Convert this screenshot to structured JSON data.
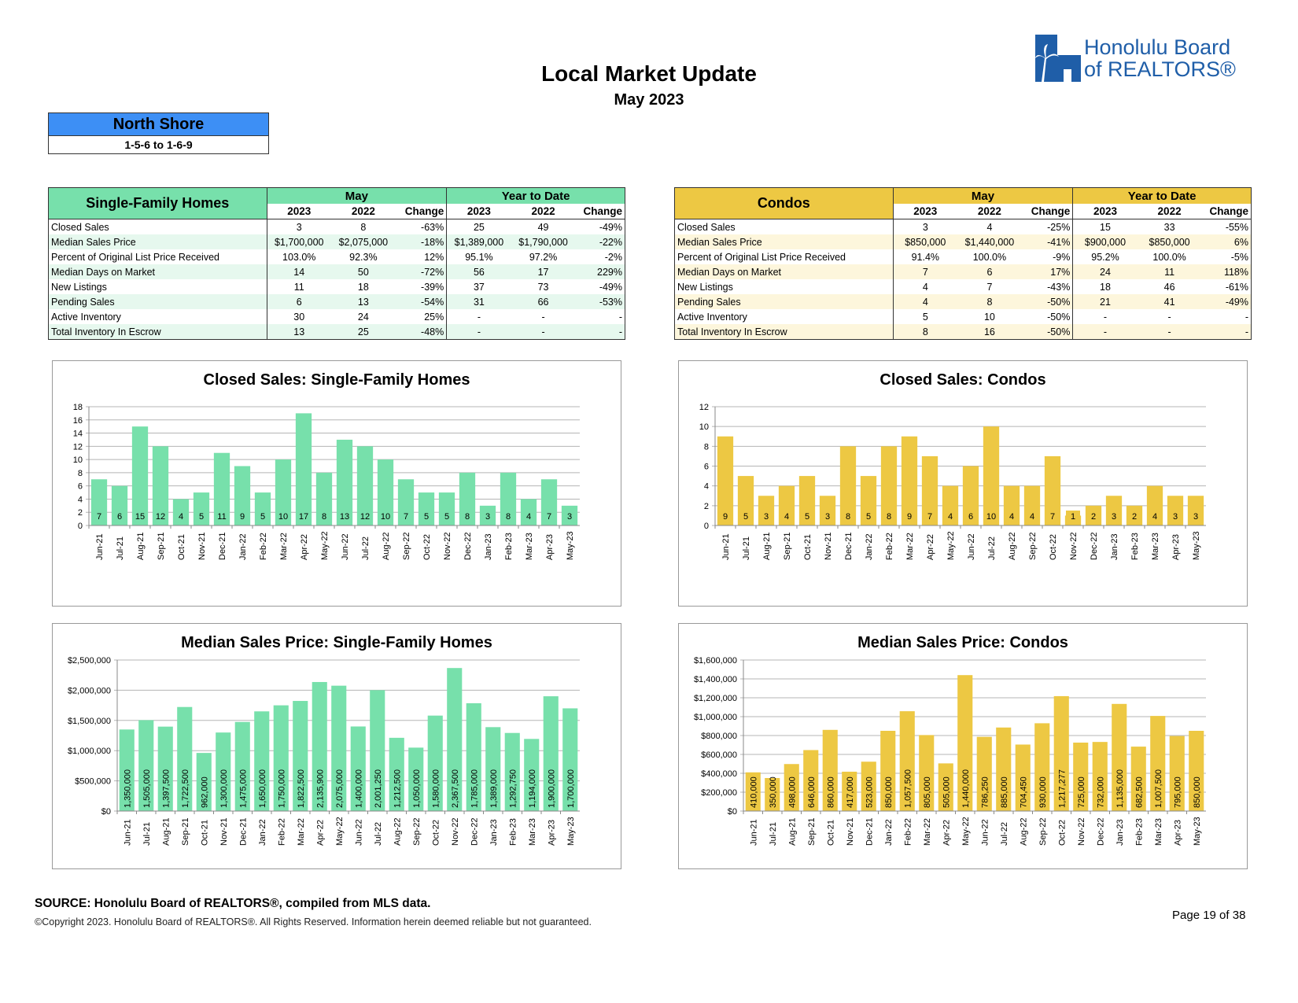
{
  "header": {
    "title": "Local Market Update",
    "subtitle": "May 2023",
    "logo_line1": "Honolulu Board",
    "logo_line2": "of REALTORS®"
  },
  "area": {
    "name": "North Shore",
    "range": "1-5-6 to 1-6-9"
  },
  "colors": {
    "sfh": "#77e0ab",
    "sfh_light": "#e6f8ee",
    "condo": "#edc843",
    "condo_light": "#fdf6dc",
    "area_blue": "#3d8ff5"
  },
  "sfh_table": {
    "title": "Single-Family Homes",
    "group_may": "May",
    "group_ytd": "Year to Date",
    "cols": [
      "2023",
      "2022",
      "Change",
      "2023",
      "2022",
      "Change"
    ],
    "rows": [
      {
        "label": "Closed Sales",
        "v": [
          "3",
          "8",
          "-63%",
          "25",
          "49",
          "-49%"
        ]
      },
      {
        "label": "Median Sales Price",
        "v": [
          "$1,700,000",
          "$2,075,000",
          "-18%",
          "$1,389,000",
          "$1,790,000",
          "-22%"
        ]
      },
      {
        "label": "Percent of Original List Price Received",
        "v": [
          "103.0%",
          "92.3%",
          "12%",
          "95.1%",
          "97.2%",
          "-2%"
        ]
      },
      {
        "label": "Median Days on Market",
        "v": [
          "14",
          "50",
          "-72%",
          "56",
          "17",
          "229%"
        ]
      },
      {
        "label": "New Listings",
        "v": [
          "11",
          "18",
          "-39%",
          "37",
          "73",
          "-49%"
        ]
      },
      {
        "label": "Pending Sales",
        "v": [
          "6",
          "13",
          "-54%",
          "31",
          "66",
          "-53%"
        ]
      },
      {
        "label": "Active Inventory",
        "v": [
          "30",
          "24",
          "25%",
          "-",
          "-",
          "-"
        ]
      },
      {
        "label": "Total Inventory In Escrow",
        "v": [
          "13",
          "25",
          "-48%",
          "-",
          "-",
          "-"
        ]
      }
    ]
  },
  "condo_table": {
    "title": "Condos",
    "group_may": "May",
    "group_ytd": "Year to Date",
    "cols": [
      "2023",
      "2022",
      "Change",
      "2023",
      "2022",
      "Change"
    ],
    "rows": [
      {
        "label": "Closed Sales",
        "v": [
          "3",
          "4",
          "-25%",
          "15",
          "33",
          "-55%"
        ]
      },
      {
        "label": "Median Sales Price",
        "v": [
          "$850,000",
          "$1,440,000",
          "-41%",
          "$900,000",
          "$850,000",
          "6%"
        ]
      },
      {
        "label": "Percent of Original List Price Received",
        "v": [
          "91.4%",
          "100.0%",
          "-9%",
          "95.2%",
          "100.0%",
          "-5%"
        ]
      },
      {
        "label": "Median Days on Market",
        "v": [
          "7",
          "6",
          "17%",
          "24",
          "11",
          "118%"
        ]
      },
      {
        "label": "New Listings",
        "v": [
          "4",
          "7",
          "-43%",
          "18",
          "46",
          "-61%"
        ]
      },
      {
        "label": "Pending Sales",
        "v": [
          "4",
          "8",
          "-50%",
          "21",
          "41",
          "-49%"
        ]
      },
      {
        "label": "Active Inventory",
        "v": [
          "5",
          "10",
          "-50%",
          "-",
          "-",
          "-"
        ]
      },
      {
        "label": "Total Inventory In Escrow",
        "v": [
          "8",
          "16",
          "-50%",
          "-",
          "-",
          "-"
        ]
      }
    ]
  },
  "chart_data": [
    {
      "id": "sfh-closed",
      "type": "bar",
      "title": "Closed Sales: Single-Family Homes",
      "categories": [
        "Jun-21",
        "Jul-21",
        "Aug-21",
        "Sep-21",
        "Oct-21",
        "Nov-21",
        "Dec-21",
        "Jan-22",
        "Feb-22",
        "Mar-22",
        "Apr-22",
        "May-22",
        "Jun-22",
        "Jul-22",
        "Aug-22",
        "Sep-22",
        "Oct-22",
        "Nov-22",
        "Dec-22",
        "Jan-23",
        "Feb-23",
        "Mar-23",
        "Apr-23",
        "May-23"
      ],
      "values": [
        7,
        6,
        15,
        12,
        4,
        5,
        11,
        9,
        5,
        10,
        17,
        8,
        13,
        12,
        10,
        7,
        5,
        5,
        8,
        3,
        8,
        4,
        7,
        3
      ],
      "ylim": [
        0,
        18
      ],
      "yticks": [
        0,
        2,
        4,
        6,
        8,
        10,
        12,
        14,
        16,
        18
      ],
      "ytick_labels": [
        "0",
        "2",
        "4",
        "6",
        "8",
        "10",
        "12",
        "14",
        "16",
        "18"
      ],
      "data_labels": [
        "7",
        "6",
        "15",
        "12",
        "4",
        "5",
        "11",
        "9",
        "5",
        "10",
        "17",
        "8",
        "13",
        "12",
        "10",
        "7",
        "5",
        "5",
        "8",
        "3",
        "8",
        "4",
        "7",
        "3"
      ],
      "label_style": "bottom",
      "color": "#77e0ab"
    },
    {
      "id": "condo-closed",
      "type": "bar",
      "title": "Closed Sales: Condos",
      "categories": [
        "Jun-21",
        "Jul-21",
        "Aug-21",
        "Sep-21",
        "Oct-21",
        "Nov-21",
        "Dec-21",
        "Jan-22",
        "Feb-22",
        "Mar-22",
        "Apr-22",
        "May-22",
        "Jun-22",
        "Jul-22",
        "Aug-22",
        "Sep-22",
        "Oct-22",
        "Nov-22",
        "Dec-22",
        "Jan-23",
        "Feb-23",
        "Mar-23",
        "Apr-23",
        "May-23"
      ],
      "values": [
        9,
        5,
        3,
        4,
        5,
        3,
        8,
        5,
        8,
        9,
        7,
        4,
        6,
        10,
        4,
        4,
        7,
        1,
        2,
        3,
        2,
        4,
        3,
        3
      ],
      "ylim": [
        0,
        12
      ],
      "yticks": [
        0,
        2,
        4,
        6,
        8,
        10,
        12
      ],
      "ytick_labels": [
        "0",
        "2",
        "4",
        "6",
        "8",
        "10",
        "12"
      ],
      "data_labels": [
        "9",
        "5",
        "3",
        "4",
        "5",
        "3",
        "8",
        "5",
        "8",
        "9",
        "7",
        "4",
        "6",
        "10",
        "4",
        "4",
        "7",
        "1",
        "2",
        "3",
        "2",
        "4",
        "3",
        "3"
      ],
      "label_style": "bottom",
      "color": "#edc843"
    },
    {
      "id": "sfh-price",
      "type": "bar",
      "title": "Median Sales Price: Single-Family Homes",
      "categories": [
        "Jun-21",
        "Jul-21",
        "Aug-21",
        "Sep-21",
        "Oct-21",
        "Nov-21",
        "Dec-21",
        "Jan-22",
        "Feb-22",
        "Mar-22",
        "Apr-22",
        "May-22",
        "Jun-22",
        "Jul-22",
        "Aug-22",
        "Sep-22",
        "Oct-22",
        "Nov-22",
        "Dec-22",
        "Jan-23",
        "Feb-23",
        "Mar-23",
        "Apr-23",
        "May-23"
      ],
      "values": [
        1350000,
        1505000,
        1397500,
        1722500,
        962000,
        1300000,
        1475000,
        1650000,
        1750000,
        1822500,
        2135900,
        2075000,
        1400000,
        2001250,
        1212500,
        1050000,
        1580000,
        2367500,
        1785000,
        1389000,
        1292750,
        1194000,
        1900000,
        1700000
      ],
      "ylim": [
        0,
        2500000
      ],
      "yticks": [
        0,
        500000,
        1000000,
        1500000,
        2000000,
        2500000
      ],
      "ytick_labels": [
        "$0",
        "$500,000",
        "$1,000,000",
        "$1,500,000",
        "$2,000,000",
        "$2,500,000"
      ],
      "data_labels": [
        "1,350,000",
        "1,505,000",
        "1,397,500",
        "1,722,500",
        "962,000",
        "1,300,000",
        "1,475,000",
        "1,650,000",
        "1,750,000",
        "1,822,500",
        "2,135,900",
        "2,075,000",
        "1,400,000",
        "2,001,250",
        "1,212,500",
        "1,050,000",
        "1,580,000",
        "2,367,500",
        "1,785,000",
        "1,389,000",
        "1,292,750",
        "1,194,000",
        "1,900,000",
        "1,700,000"
      ],
      "label_style": "vertical",
      "color": "#77e0ab"
    },
    {
      "id": "condo-price",
      "type": "bar",
      "title": "Median Sales Price: Condos",
      "categories": [
        "Jun-21",
        "Jul-21",
        "Aug-21",
        "Sep-21",
        "Oct-21",
        "Nov-21",
        "Dec-21",
        "Jan-22",
        "Feb-22",
        "Mar-22",
        "Apr-22",
        "May-22",
        "Jun-22",
        "Jul-22",
        "Aug-22",
        "Sep-22",
        "Oct-22",
        "Nov-22",
        "Dec-22",
        "Jan-23",
        "Feb-23",
        "Mar-23",
        "Apr-23",
        "May-23"
      ],
      "values": [
        410000,
        350000,
        498000,
        646000,
        860000,
        417000,
        523000,
        850000,
        1057500,
        805000,
        505000,
        1440000,
        786250,
        885000,
        704450,
        930000,
        1217277,
        725000,
        732000,
        1135000,
        682500,
        1007500,
        795000,
        850000
      ],
      "ylim": [
        0,
        1600000
      ],
      "yticks": [
        0,
        200000,
        400000,
        600000,
        800000,
        1000000,
        1200000,
        1400000,
        1600000
      ],
      "ytick_labels": [
        "$0",
        "$200,000",
        "$400,000",
        "$600,000",
        "$800,000",
        "$1,000,000",
        "$1,200,000",
        "$1,400,000",
        "$1,600,000"
      ],
      "data_labels": [
        "410,000",
        "350,000",
        "498,000",
        "646,000",
        "860,000",
        "417,000",
        "523,000",
        "850,000",
        "1,057,500",
        "805,000",
        "505,000",
        "1,440,000",
        "786,250",
        "885,000",
        "704,450",
        "930,000",
        "1,217,277",
        "725,000",
        "732,000",
        "1,135,000",
        "682,500",
        "1,007,500",
        "795,000",
        "850,000"
      ],
      "label_style": "vertical",
      "color": "#edc843"
    }
  ],
  "footer": {
    "source": "SOURCE: Honolulu Board of REALTORS®, compiled from MLS data.",
    "copyright": "©Copyright 2023. Honolulu Board of REALTORS®. All Rights Reserved. Information herein deemed reliable but not guaranteed.",
    "page": "Page 19 of 38"
  }
}
